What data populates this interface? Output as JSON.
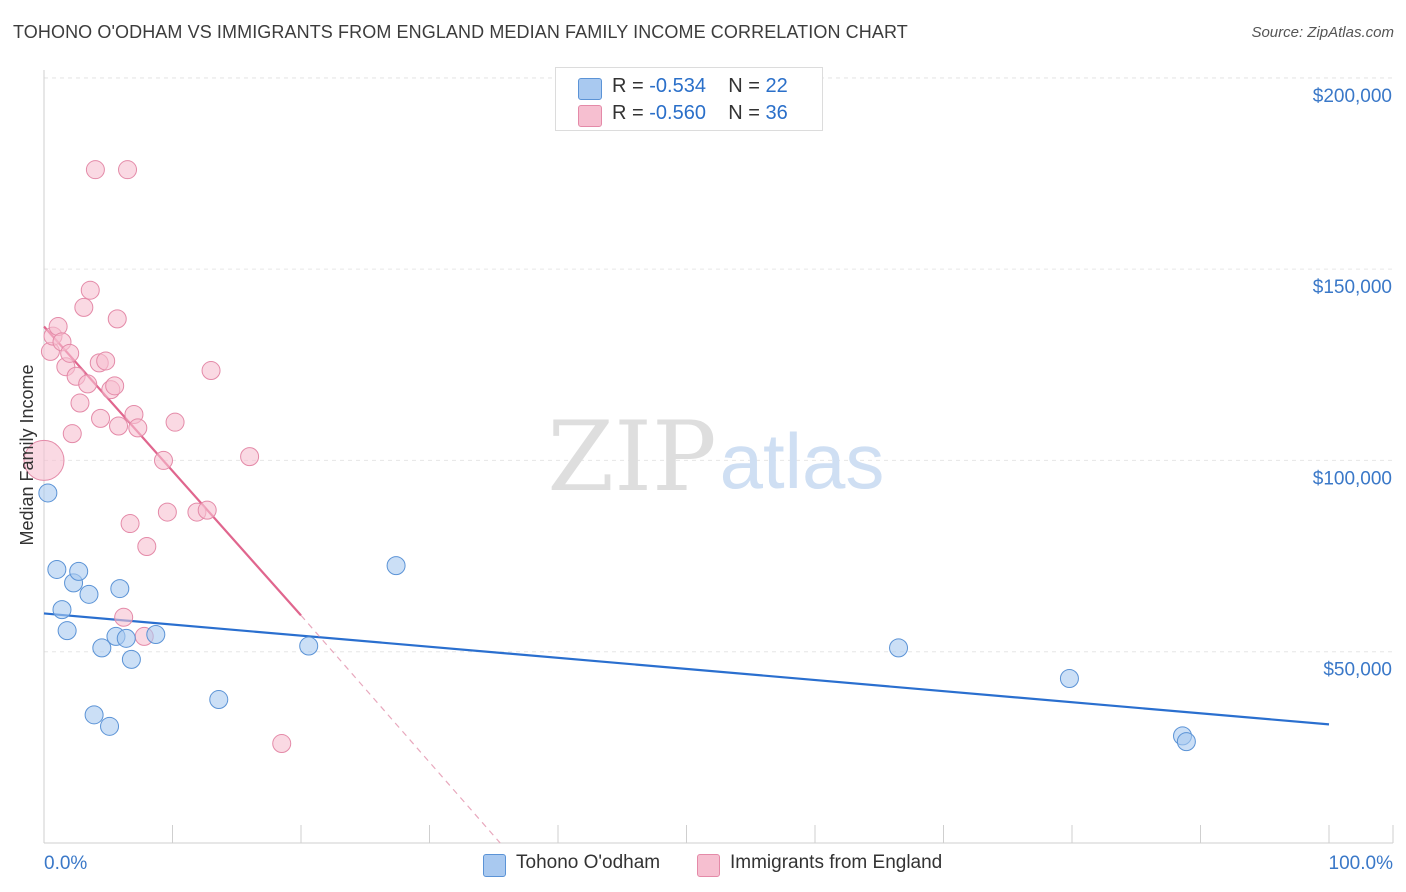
{
  "header": {
    "title": "TOHONO O'ODHAM VS IMMIGRANTS FROM ENGLAND MEDIAN FAMILY INCOME CORRELATION CHART",
    "source": "Source: ZipAtlas.com"
  },
  "watermark": {
    "zip": "ZIP",
    "atlas": "atlas"
  },
  "legend": {
    "rows": [
      {
        "r_label": "R = ",
        "r_value": "-0.534",
        "n_label": "N = ",
        "n_value": "22"
      },
      {
        "r_label": "R = ",
        "r_value": "-0.560",
        "n_label": "N = ",
        "n_value": "36"
      }
    ]
  },
  "colors": {
    "blue_fill": "#a9c9f0",
    "blue_stroke": "#5b93d6",
    "blue_line": "#2a6fcf",
    "pink_fill": "#f6bfd0",
    "pink_stroke": "#e48aa8",
    "pink_line": "#e0668e",
    "axis_text": "#3a78c8"
  },
  "chart_data": {
    "type": "scatter",
    "title": "TOHONO O'ODHAM VS IMMIGRANTS FROM ENGLAND MEDIAN FAMILY INCOME CORRELATION CHART",
    "xlabel": "",
    "ylabel": "Median Family Income",
    "xlim": [
      0,
      100
    ],
    "ylim": [
      0,
      205000
    ],
    "x_tick_labels": [
      "0.0%",
      "100.0%"
    ],
    "y_ticks": [
      50000,
      100000,
      150000,
      200000
    ],
    "y_tick_labels": [
      "$50,000",
      "$100,000",
      "$150,000",
      "$200,000"
    ],
    "grid": true,
    "series": [
      {
        "name": "Tohono O'odham",
        "r": -0.534,
        "n": 22,
        "points": [
          [
            0.3,
            91500
          ],
          [
            1.0,
            71500
          ],
          [
            1.4,
            61000
          ],
          [
            1.8,
            55500
          ],
          [
            2.3,
            68000
          ],
          [
            2.7,
            71000
          ],
          [
            3.5,
            65000
          ],
          [
            3.9,
            33500
          ],
          [
            4.5,
            51000
          ],
          [
            5.1,
            30500
          ],
          [
            5.6,
            54000
          ],
          [
            5.9,
            66500
          ],
          [
            6.4,
            53500
          ],
          [
            6.8,
            48000
          ],
          [
            8.7,
            54500
          ],
          [
            13.6,
            37500
          ],
          [
            20.6,
            51500
          ],
          [
            27.4,
            72500
          ],
          [
            66.5,
            51000
          ],
          [
            79.8,
            43000
          ],
          [
            88.6,
            28000
          ],
          [
            88.9,
            26500
          ]
        ],
        "trend": {
          "x": [
            0,
            100
          ],
          "y": [
            60000,
            31000
          ]
        }
      },
      {
        "name": "Immigrants from England",
        "r": -0.56,
        "n": 36,
        "points": [
          [
            0.0,
            100000
          ],
          [
            0.5,
            128500
          ],
          [
            0.7,
            132500
          ],
          [
            1.1,
            135000
          ],
          [
            1.4,
            131000
          ],
          [
            1.7,
            124500
          ],
          [
            2.0,
            128000
          ],
          [
            2.2,
            107000
          ],
          [
            2.5,
            122000
          ],
          [
            2.8,
            115000
          ],
          [
            3.1,
            140000
          ],
          [
            3.4,
            120000
          ],
          [
            3.6,
            144500
          ],
          [
            4.0,
            176000
          ],
          [
            4.3,
            125500
          ],
          [
            4.4,
            111000
          ],
          [
            4.8,
            126000
          ],
          [
            5.2,
            118500
          ],
          [
            5.5,
            119500
          ],
          [
            5.7,
            137000
          ],
          [
            5.8,
            109000
          ],
          [
            6.2,
            59000
          ],
          [
            6.5,
            176000
          ],
          [
            6.7,
            83500
          ],
          [
            7.0,
            112000
          ],
          [
            7.3,
            108500
          ],
          [
            7.8,
            54000
          ],
          [
            8.0,
            77500
          ],
          [
            9.3,
            100000
          ],
          [
            9.6,
            86500
          ],
          [
            10.2,
            110000
          ],
          [
            11.9,
            86500
          ],
          [
            12.7,
            87000
          ],
          [
            13.0,
            123500
          ],
          [
            16.0,
            101000
          ],
          [
            18.5,
            26000
          ]
        ],
        "trend": {
          "x": [
            0,
            20
          ],
          "y": [
            135000,
            59500
          ]
        },
        "trend_dashed": {
          "x": [
            20,
            35.5
          ],
          "y": [
            59500,
            0
          ]
        }
      }
    ]
  },
  "bottom_legend": [
    {
      "label": "Tohono O'odham"
    },
    {
      "label": "Immigrants from England"
    }
  ]
}
